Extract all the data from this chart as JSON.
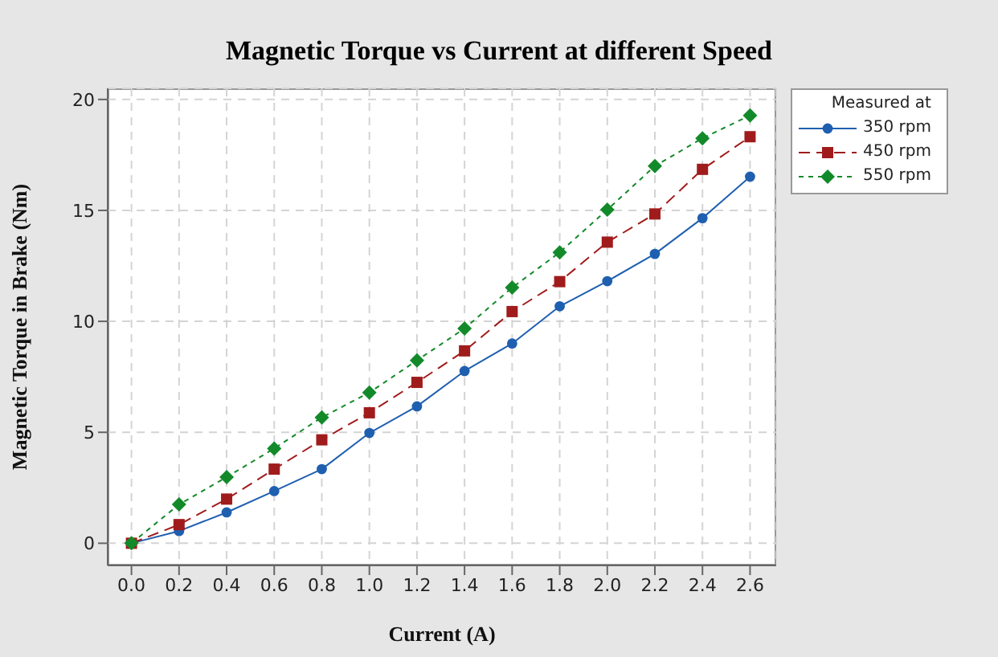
{
  "chart_data": {
    "type": "line",
    "title": "Magnetic Torque vs Current at different Speed",
    "xlabel": "Current (A)",
    "ylabel": "Magnetic Torque in Brake (Nm)",
    "legend_title": "Measured at",
    "x": [
      0,
      0.2,
      0.4,
      0.6,
      0.8,
      1.0,
      1.2,
      1.4,
      1.6,
      1.8,
      2.0,
      2.2,
      2.4,
      2.6
    ],
    "series": [
      {
        "name": "350 rpm",
        "color": "#1f5fb0",
        "marker": "circle",
        "line_style": "solid",
        "values": [
          0,
          0.55,
          1.39,
          2.35,
          3.34,
          4.97,
          6.17,
          7.76,
          9.0,
          10.68,
          11.81,
          13.04,
          14.65,
          16.52
        ]
      },
      {
        "name": "450 rpm",
        "color": "#a01c1c",
        "marker": "square",
        "line_style": "dashed",
        "values": [
          0,
          0.84,
          1.99,
          3.34,
          4.66,
          5.88,
          7.25,
          8.67,
          10.44,
          11.79,
          13.57,
          14.84,
          16.85,
          18.32
        ]
      },
      {
        "name": "550 rpm",
        "color": "#138a2a",
        "marker": "diamond",
        "line_style": "dotted",
        "values": [
          0,
          1.75,
          2.98,
          4.27,
          5.67,
          6.79,
          8.24,
          9.68,
          11.52,
          13.11,
          15.03,
          17.0,
          18.25,
          19.28
        ]
      }
    ],
    "xlim": [
      -0.1,
      2.71
    ],
    "xticks": [
      {
        "value": 0,
        "label": "0.0"
      },
      {
        "value": 0.2,
        "label": "0.2"
      },
      {
        "value": 0.4,
        "label": "0.4"
      },
      {
        "value": 0.6,
        "label": "0.6"
      },
      {
        "value": 0.8,
        "label": "0.8"
      },
      {
        "value": 1.0,
        "label": "1.0"
      },
      {
        "value": 1.2,
        "label": "1.2"
      },
      {
        "value": 1.4,
        "label": "1.4"
      },
      {
        "value": 1.6,
        "label": "1.6"
      },
      {
        "value": 1.8,
        "label": "1.8"
      },
      {
        "value": 2.0,
        "label": "2.0"
      },
      {
        "value": 2.2,
        "label": "2.2"
      },
      {
        "value": 2.4,
        "label": "2.4"
      },
      {
        "value": 2.6,
        "label": "2.6"
      }
    ],
    "ylim": [
      -1,
      20.5
    ],
    "yticks": [
      0,
      5,
      10,
      15,
      20
    ],
    "grid": true,
    "legend": "top right"
  }
}
